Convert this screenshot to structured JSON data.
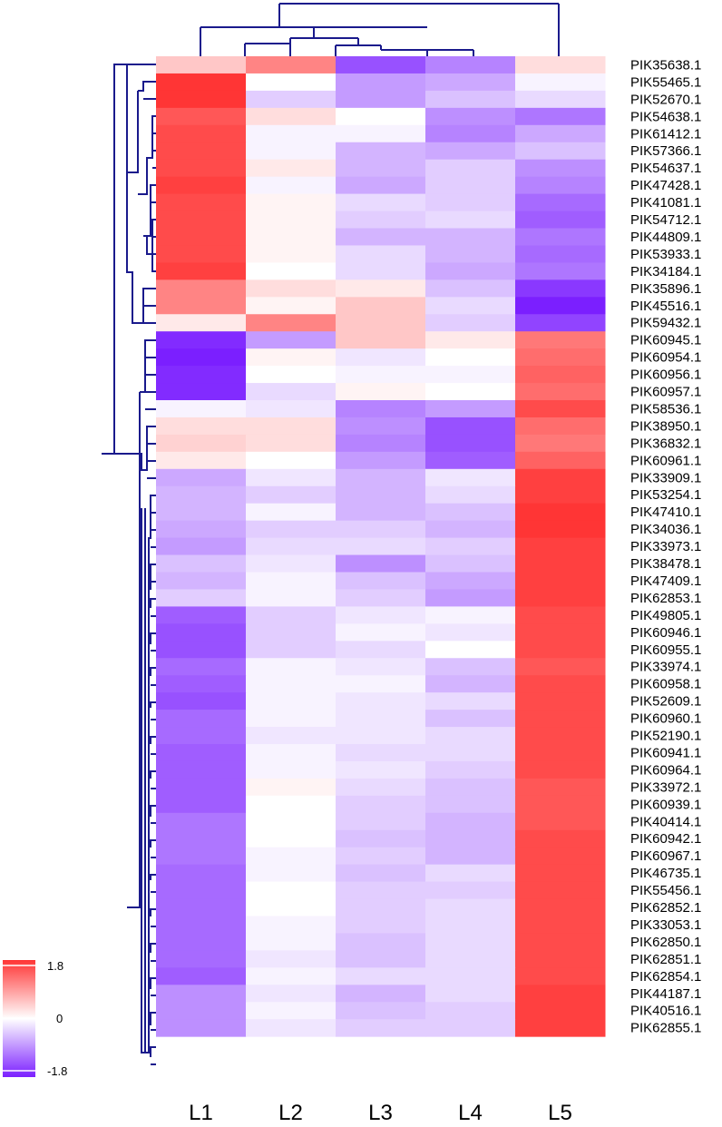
{
  "chart_data": {
    "type": "heatmap",
    "title": "",
    "columns": [
      "L1",
      "L2",
      "L3",
      "L4",
      "L5"
    ],
    "rows": [
      "PIK35638.1",
      "PIK55465.1",
      "PIK52670.1",
      "PIK54638.1",
      "PIK61412.1",
      "PIK57366.1",
      "PIK54637.1",
      "PIK47428.1",
      "PIK41081.1",
      "PIK54712.1",
      "PIK44809.1",
      "PIK53933.1",
      "PIK34184.1",
      "PIK35896.1",
      "PIK45516.1",
      "PIK59432.1",
      "PIK60945.1",
      "PIK60954.1",
      "PIK60956.1",
      "PIK60957.1",
      "PIK58536.1",
      "PIK38950.1",
      "PIK36832.1",
      "PIK60961.1",
      "PIK33909.1",
      "PIK53254.1",
      "PIK47410.1",
      "PIK34036.1",
      "PIK33973.1",
      "PIK38478.1",
      "PIK47409.1",
      "PIK62853.1",
      "PIK49805.1",
      "PIK60946.1",
      "PIK60955.1",
      "PIK33974.1",
      "PIK60958.1",
      "PIK52609.1",
      "PIK60960.1",
      "PIK52190.1",
      "PIK60941.1",
      "PIK60964.1",
      "PIK33972.1",
      "PIK60939.1",
      "PIK40414.1",
      "PIK60942.1",
      "PIK60967.1",
      "PIK46735.1",
      "PIK55456.1",
      "PIK62852.1",
      "PIK33053.1",
      "PIK62850.1",
      "PIK62851.1",
      "PIK62854.1",
      "PIK44187.1",
      "PIK40516.1",
      "PIK62855.1"
    ],
    "values": [
      [
        0.5,
        1.1,
        -1.4,
        -1.0,
        0.3
      ],
      [
        1.8,
        0.0,
        -0.8,
        -0.7,
        -0.1
      ],
      [
        1.8,
        -0.4,
        -0.8,
        -0.5,
        -0.3
      ],
      [
        1.5,
        0.3,
        0.0,
        -0.9,
        -1.1
      ],
      [
        1.6,
        -0.1,
        -0.1,
        -1.0,
        -0.7
      ],
      [
        1.6,
        -0.1,
        -0.6,
        -0.7,
        -0.5
      ],
      [
        1.6,
        0.2,
        -0.6,
        -0.4,
        -0.9
      ],
      [
        1.7,
        -0.1,
        -0.7,
        -0.4,
        -1.0
      ],
      [
        1.6,
        0.1,
        -0.3,
        -0.4,
        -1.2
      ],
      [
        1.6,
        0.1,
        -0.4,
        -0.3,
        -1.3
      ],
      [
        1.6,
        0.1,
        -0.6,
        -0.6,
        -1.1
      ],
      [
        1.6,
        0.1,
        -0.3,
        -0.6,
        -1.2
      ],
      [
        1.7,
        0.0,
        -0.3,
        -0.7,
        -1.1
      ],
      [
        1.1,
        0.3,
        0.2,
        -0.5,
        -1.6
      ],
      [
        1.1,
        0.1,
        0.5,
        -0.3,
        -1.8
      ],
      [
        0.2,
        1.1,
        0.5,
        -0.4,
        -1.5
      ],
      [
        -1.7,
        -0.8,
        0.5,
        0.2,
        1.2
      ],
      [
        -1.8,
        0.1,
        -0.2,
        0.0,
        1.3
      ],
      [
        -1.7,
        0.0,
        -0.1,
        -0.1,
        1.4
      ],
      [
        -1.7,
        -0.3,
        0.1,
        0.0,
        1.3
      ],
      [
        -0.1,
        -0.2,
        -1.0,
        -0.8,
        1.6
      ],
      [
        0.3,
        0.3,
        -0.9,
        -1.4,
        1.3
      ],
      [
        0.4,
        0.3,
        -1.0,
        -1.4,
        1.2
      ],
      [
        0.2,
        0.0,
        -0.8,
        -1.3,
        1.4
      ],
      [
        -0.7,
        -0.2,
        -0.6,
        -0.2,
        1.7
      ],
      [
        -0.6,
        -0.4,
        -0.6,
        -0.3,
        1.7
      ],
      [
        -0.6,
        -0.1,
        -0.6,
        -0.5,
        1.8
      ],
      [
        -0.7,
        -0.4,
        -0.4,
        -0.6,
        1.8
      ],
      [
        -0.8,
        -0.3,
        -0.3,
        -0.4,
        1.7
      ],
      [
        -0.5,
        -0.2,
        -0.9,
        -0.5,
        1.7
      ],
      [
        -0.6,
        -0.1,
        -0.5,
        -0.7,
        1.7
      ],
      [
        -0.4,
        -0.1,
        -0.4,
        -0.8,
        1.7
      ],
      [
        -1.3,
        -0.4,
        -0.2,
        -0.1,
        1.6
      ],
      [
        -1.4,
        -0.4,
        -0.1,
        -0.2,
        1.6
      ],
      [
        -1.4,
        -0.4,
        -0.3,
        0.0,
        1.6
      ],
      [
        -1.2,
        -0.1,
        -0.2,
        -0.5,
        1.5
      ],
      [
        -1.3,
        -0.1,
        -0.1,
        -0.6,
        1.6
      ],
      [
        -1.4,
        -0.1,
        -0.2,
        -0.3,
        1.6
      ],
      [
        -1.2,
        -0.1,
        -0.2,
        -0.5,
        1.6
      ],
      [
        -1.2,
        -0.2,
        -0.2,
        -0.3,
        1.6
      ],
      [
        -1.3,
        -0.1,
        -0.3,
        -0.3,
        1.6
      ],
      [
        -1.3,
        -0.1,
        -0.2,
        -0.4,
        1.6
      ],
      [
        -1.3,
        0.1,
        -0.3,
        -0.5,
        1.5
      ],
      [
        -1.3,
        0.0,
        -0.4,
        -0.5,
        1.5
      ],
      [
        -1.1,
        0.0,
        -0.4,
        -0.6,
        1.5
      ],
      [
        -1.1,
        0.0,
        -0.5,
        -0.6,
        1.6
      ],
      [
        -1.1,
        -0.1,
        -0.4,
        -0.6,
        1.6
      ],
      [
        -1.2,
        -0.1,
        -0.5,
        -0.3,
        1.6
      ],
      [
        -1.2,
        0.0,
        -0.4,
        -0.4,
        1.6
      ],
      [
        -1.2,
        0.0,
        -0.4,
        -0.3,
        1.6
      ],
      [
        -1.2,
        -0.1,
        -0.4,
        -0.3,
        1.6
      ],
      [
        -1.2,
        -0.1,
        -0.5,
        -0.3,
        1.6
      ],
      [
        -1.2,
        -0.2,
        -0.5,
        -0.3,
        1.6
      ],
      [
        -1.3,
        -0.1,
        -0.3,
        -0.3,
        1.6
      ],
      [
        -0.9,
        -0.2,
        -0.6,
        -0.3,
        1.7
      ],
      [
        -0.9,
        -0.1,
        -0.5,
        -0.4,
        1.7
      ],
      [
        -0.9,
        -0.2,
        -0.4,
        -0.4,
        1.7
      ]
    ],
    "color_scale": {
      "min": -1.8,
      "mid": 0,
      "max": 1.8,
      "colors": {
        "low": "#7b1fff",
        "mid": "#ffffff",
        "high": "#ff3535"
      },
      "tick_labels": [
        "1.8",
        "0",
        "-1.8"
      ]
    },
    "dendrogram_color": "#1a1a8c",
    "legend_placement": "bottom-left"
  }
}
